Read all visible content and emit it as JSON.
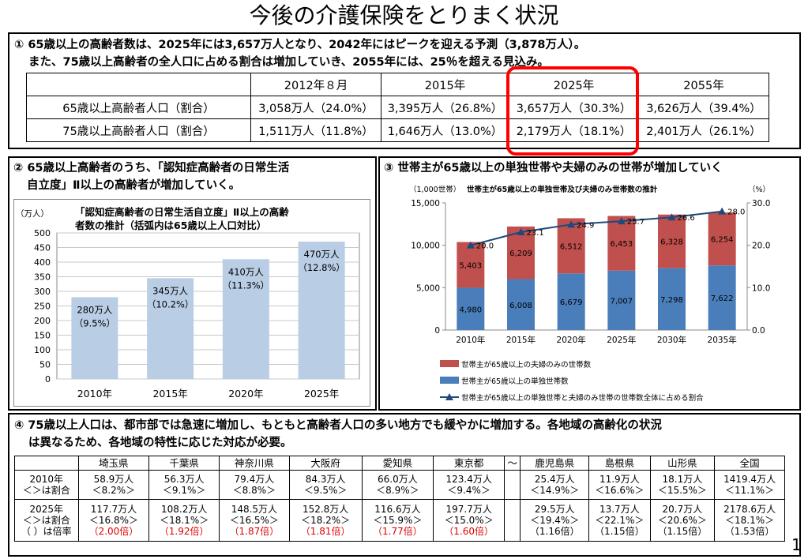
{
  "page_title": "今後の介護保険をとりまく状況",
  "page_number": "1",
  "section1": {
    "heading_line1": "① 65歳以上の高齢者数は、2025年には3,657万人となり、2042年にはピークを迎える予測（3,878万人）。",
    "heading_line2": "また、75歳以上高齢者の全人口に占める割合は増加していき、2055年には、25％を超える見込み。",
    "table": {
      "columns": [
        "",
        "2012年８月",
        "2015年",
        "2025年",
        "2055年"
      ],
      "rows": [
        [
          "65歳以上高齢者人口（割合）",
          "3,058万人（24.0%）",
          "3,395万人（26.8%）",
          "3,657万人（30.3%）",
          "3,626万人（39.4%）"
        ],
        [
          "75歳以上高齢者人口（割合）",
          "1,511万人（11.8%）",
          "1,646万人（13.0%）",
          "2,179万人（18.1%）",
          "2,401万人（26.1%）"
        ]
      ]
    },
    "highlight_color": "#ff0000"
  },
  "section2": {
    "heading_line1": "② 65歳以上高齢者のうち、「認知症高齢者の日常生活",
    "heading_line2": "自立度」Ⅱ以上の高齢者が増加していく。",
    "chart_title_line1": "「認知症高齢者の日常生活自立度」Ⅱ以上の高齢",
    "chart_title_line2": "者数の推計（括弧内は65歳以上人口対比）",
    "unit": "（万人）",
    "bar_labels": [
      {
        "l1": "280万人",
        "l2": "（9.5%）"
      },
      {
        "l1": "345万人",
        "l2": "（10.2%）"
      },
      {
        "l1": "410万人",
        "l2": "（11.3%）"
      },
      {
        "l1": "470万人",
        "l2": "（12.8%）"
      }
    ]
  },
  "section3": {
    "heading": "③ 世帯主が65歳以上の単独世帯や夫婦のみの世帯が増加していく",
    "chart_title": "世帯主が65歳以上の単独世帯及び夫婦のみ世帯数の推計",
    "unit_left": "（1,000世帯）",
    "unit_right": "（%）",
    "legend": [
      "世帯主が65歳以上の夫婦のみの世帯数",
      "世帯主が65歳以上の単独世帯数",
      "世帯主が65歳以上の単独世帯と夫婦のみ世帯の世帯数全体に占める割合"
    ]
  },
  "section4": {
    "heading_line1": "④ 75歳以上人口は、都市部では急速に増加し、もともと高齢者人口の多い地方でも緩やかに増加する。各地域の高齢化の状況",
    "heading_line2": "は異なるため、各地域の特性に応じた対応が必要。",
    "columns": [
      "",
      "埼玉県",
      "千葉県",
      "神奈川県",
      "大阪府",
      "愛知県",
      "東京都",
      "〜",
      "鹿児島県",
      "島根県",
      "山形県",
      "全国"
    ],
    "row2010_label": [
      "2010年",
      "＜＞は割合"
    ],
    "row2025_label": [
      "2025年",
      "＜＞は割合",
      "（ ）は倍率"
    ],
    "row2010": [
      [
        "58.9万人",
        "＜8.2%＞"
      ],
      [
        "56.3万人",
        "＜9.1%＞"
      ],
      [
        "79.4万人",
        "＜8.8%＞"
      ],
      [
        "84.3万人",
        "＜9.5%＞"
      ],
      [
        "66.0万人",
        "＜8.9%＞"
      ],
      [
        "123.4万人",
        "＜9.4%＞"
      ],
      [
        "",
        ""
      ],
      [
        "25.4万人",
        "＜14.9%＞"
      ],
      [
        "11.9万人",
        "＜16.6%＞"
      ],
      [
        "18.1万人",
        "＜15.5%＞"
      ],
      [
        "1419.4万人",
        "＜11.1%＞"
      ]
    ],
    "row2025": [
      [
        "117.7万人",
        "＜16.8%＞",
        "（2.00倍）"
      ],
      [
        "108.2万人",
        "＜18.1%＞",
        "（1.92倍）"
      ],
      [
        "148.5万人",
        "＜16.5%＞",
        "（1.87倍）"
      ],
      [
        "152.8万人",
        "＜18.2%＞",
        "（1.81倍）"
      ],
      [
        "116.6万人",
        "＜15.9%＞",
        "（1.77倍）"
      ],
      [
        "197.7万人",
        "＜15.0%＞",
        "（1.60倍）"
      ],
      [
        "",
        "",
        ""
      ],
      [
        "29.5万人",
        "＜19.4%＞",
        "（1.16倍）"
      ],
      [
        "13.7万人",
        "＜22.1%＞",
        "（1.15倍）"
      ],
      [
        "20.7万人",
        "＜20.6%＞",
        "（1.15倍）"
      ],
      [
        "2178.6万人",
        "＜18.1%＞",
        "（1.53倍）"
      ]
    ],
    "ratio_colors": [
      "red",
      "red",
      "red",
      "red",
      "red",
      "red",
      "",
      "black",
      "black",
      "black",
      "black"
    ]
  },
  "chart_data": [
    {
      "type": "bar",
      "title": "「認知症高齢者の日常生活自立度」Ⅱ以上の高齢者数の推計（括弧内は65歳以上人口対比）",
      "ylabel": "（万人）",
      "categories": [
        "2010年",
        "2015年",
        "2020年",
        "2025年"
      ],
      "values": [
        280,
        345,
        410,
        470
      ],
      "ylim": [
        0,
        500
      ],
      "yticks": [
        0,
        50,
        100,
        150,
        200,
        250,
        300,
        350,
        400,
        450,
        500
      ],
      "grid": true,
      "color": "#b9cde5"
    },
    {
      "type": "bar",
      "stacked": true,
      "title": "世帯主が65歳以上の単独世帯及び夫婦のみ世帯数の推計",
      "categories": [
        "2010年",
        "2015年",
        "2020年",
        "2025年",
        "2030年",
        "2035年"
      ],
      "series": [
        {
          "name": "世帯主が65歳以上の単独世帯数",
          "values": [
            4980,
            6008,
            6679,
            7007,
            7298,
            7622
          ],
          "color": "#4a7ebb"
        },
        {
          "name": "世帯主が65歳以上の夫婦のみの世帯数",
          "values": [
            5403,
            6209,
            6512,
            6453,
            6328,
            6254
          ],
          "color": "#c0504d"
        }
      ],
      "line": {
        "name": "世帯主が65歳以上の単独世帯と夫婦のみ世帯の世帯数全体に占める割合",
        "values": [
          20.0,
          23.1,
          24.9,
          25.7,
          26.6,
          28.0
        ],
        "color": "#1f497d"
      },
      "ylim_left": [
        0,
        15000
      ],
      "yticks_left": [
        "0",
        "5,000",
        "10,000",
        "15,000"
      ],
      "ylim_right": [
        0,
        30
      ],
      "yticks_right": [
        "0.0",
        "10.0",
        "20.0",
        "30.0"
      ]
    }
  ]
}
